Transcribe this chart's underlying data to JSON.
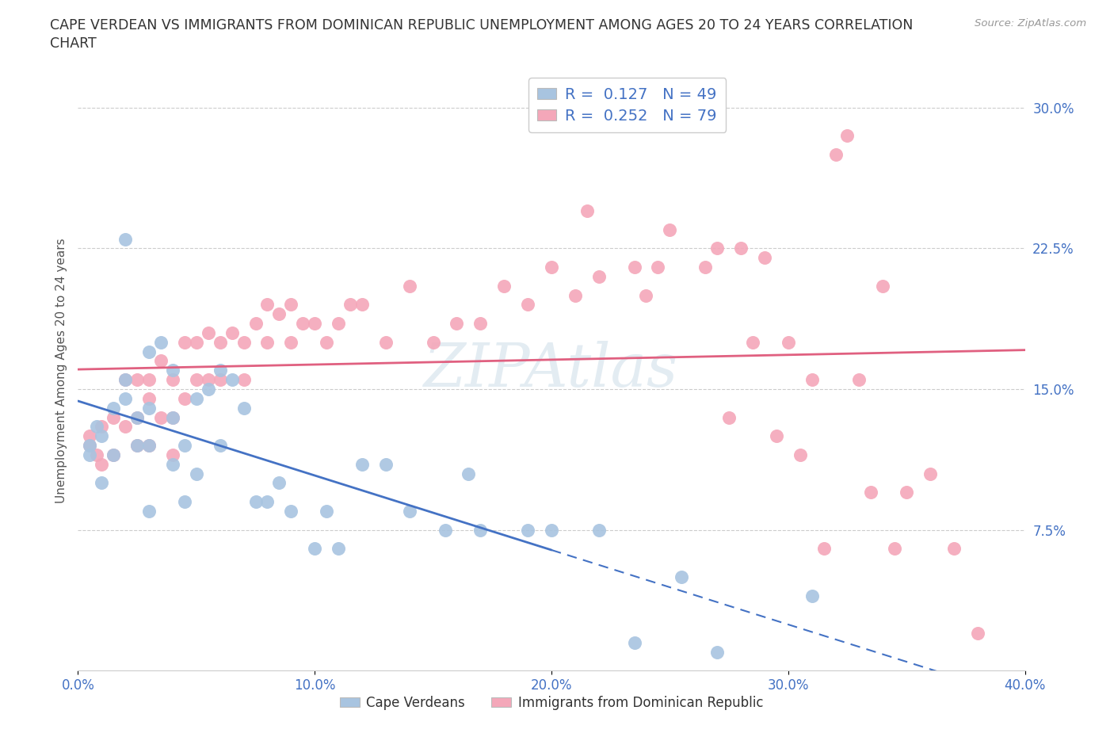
{
  "title_line1": "CAPE VERDEAN VS IMMIGRANTS FROM DOMINICAN REPUBLIC UNEMPLOYMENT AMONG AGES 20 TO 24 YEARS CORRELATION",
  "title_line2": "CHART",
  "source_text": "Source: ZipAtlas.com",
  "ylabel": "Unemployment Among Ages 20 to 24 years",
  "xlim": [
    0.0,
    0.4
  ],
  "ylim": [
    0.0,
    0.32
  ],
  "xticks": [
    0.0,
    0.1,
    0.2,
    0.3,
    0.4
  ],
  "xticklabels": [
    "0.0%",
    "10.0%",
    "20.0%",
    "30.0%",
    "40.0%"
  ],
  "yticks_right": [
    0.075,
    0.15,
    0.225,
    0.3
  ],
  "yticklabels_right": [
    "7.5%",
    "15.0%",
    "22.5%",
    "30.0%"
  ],
  "grid_color": "#cccccc",
  "background_color": "#ffffff",
  "watermark": "ZIPAtlas",
  "legend_r1": "R =  0.127",
  "legend_n1": "N = 49",
  "legend_r2": "R =  0.252",
  "legend_n2": "N = 79",
  "blue_color": "#a8c4e0",
  "pink_color": "#f4a7b9",
  "trendline_blue": "#4472c4",
  "trendline_pink": "#e06080",
  "blue_scatter_x": [
    0.005,
    0.005,
    0.008,
    0.01,
    0.01,
    0.015,
    0.015,
    0.02,
    0.02,
    0.02,
    0.025,
    0.025,
    0.03,
    0.03,
    0.03,
    0.03,
    0.035,
    0.04,
    0.04,
    0.04,
    0.045,
    0.045,
    0.05,
    0.05,
    0.055,
    0.06,
    0.06,
    0.065,
    0.07,
    0.075,
    0.08,
    0.085,
    0.09,
    0.1,
    0.105,
    0.11,
    0.12,
    0.13,
    0.14,
    0.155,
    0.165,
    0.17,
    0.19,
    0.2,
    0.22,
    0.235,
    0.255,
    0.27,
    0.31
  ],
  "blue_scatter_y": [
    0.115,
    0.12,
    0.13,
    0.125,
    0.1,
    0.14,
    0.115,
    0.23,
    0.155,
    0.145,
    0.135,
    0.12,
    0.17,
    0.14,
    0.12,
    0.085,
    0.175,
    0.16,
    0.135,
    0.11,
    0.12,
    0.09,
    0.145,
    0.105,
    0.15,
    0.16,
    0.12,
    0.155,
    0.14,
    0.09,
    0.09,
    0.1,
    0.085,
    0.065,
    0.085,
    0.065,
    0.11,
    0.11,
    0.085,
    0.075,
    0.105,
    0.075,
    0.075,
    0.075,
    0.075,
    0.015,
    0.05,
    0.01,
    0.04
  ],
  "pink_scatter_x": [
    0.005,
    0.005,
    0.008,
    0.01,
    0.01,
    0.015,
    0.015,
    0.02,
    0.02,
    0.025,
    0.025,
    0.025,
    0.03,
    0.03,
    0.03,
    0.035,
    0.035,
    0.04,
    0.04,
    0.04,
    0.045,
    0.045,
    0.05,
    0.05,
    0.055,
    0.055,
    0.06,
    0.06,
    0.065,
    0.07,
    0.07,
    0.075,
    0.08,
    0.08,
    0.085,
    0.09,
    0.09,
    0.095,
    0.1,
    0.105,
    0.11,
    0.115,
    0.12,
    0.13,
    0.14,
    0.15,
    0.16,
    0.17,
    0.18,
    0.19,
    0.2,
    0.21,
    0.215,
    0.22,
    0.235,
    0.24,
    0.245,
    0.25,
    0.265,
    0.27,
    0.275,
    0.28,
    0.285,
    0.29,
    0.295,
    0.3,
    0.305,
    0.31,
    0.315,
    0.32,
    0.325,
    0.33,
    0.335,
    0.34,
    0.345,
    0.35,
    0.36,
    0.37,
    0.38
  ],
  "pink_scatter_y": [
    0.12,
    0.125,
    0.115,
    0.13,
    0.11,
    0.135,
    0.115,
    0.155,
    0.13,
    0.155,
    0.135,
    0.12,
    0.155,
    0.145,
    0.12,
    0.165,
    0.135,
    0.155,
    0.135,
    0.115,
    0.175,
    0.145,
    0.175,
    0.155,
    0.18,
    0.155,
    0.175,
    0.155,
    0.18,
    0.175,
    0.155,
    0.185,
    0.195,
    0.175,
    0.19,
    0.195,
    0.175,
    0.185,
    0.185,
    0.175,
    0.185,
    0.195,
    0.195,
    0.175,
    0.205,
    0.175,
    0.185,
    0.185,
    0.205,
    0.195,
    0.215,
    0.2,
    0.245,
    0.21,
    0.215,
    0.2,
    0.215,
    0.235,
    0.215,
    0.225,
    0.135,
    0.225,
    0.175,
    0.22,
    0.125,
    0.175,
    0.115,
    0.155,
    0.065,
    0.275,
    0.285,
    0.155,
    0.095,
    0.205,
    0.065,
    0.095,
    0.105,
    0.065,
    0.02
  ]
}
